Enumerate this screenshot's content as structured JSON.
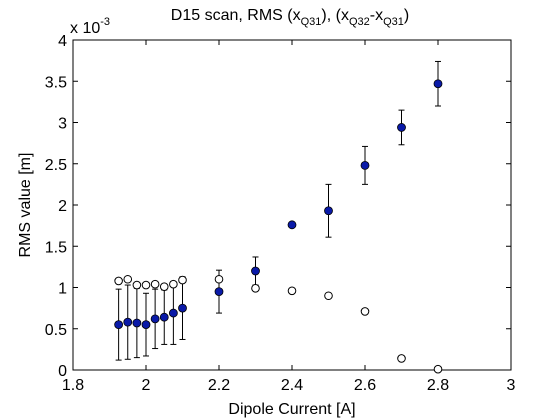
{
  "chart_data": {
    "type": "scatter",
    "title": {
      "prefix": "D15 scan, RMS (x",
      "sub1": "Q31",
      "mid": "), (x",
      "sub2": "Q32",
      "mid2": "-x",
      "sub3": "Q31",
      "suffix": ")"
    },
    "xlabel": "Dipole Current [A]",
    "ylabel": "RMS value [m]",
    "y_exponent": {
      "base": "x 10",
      "power": "-3"
    },
    "xlim": [
      1.8,
      3.0
    ],
    "ylim": [
      0,
      4
    ],
    "xticks": [
      1.8,
      2.0,
      2.2,
      2.4,
      2.6,
      2.8,
      3.0
    ],
    "xtick_labels": [
      "1.8",
      "2",
      "2.2",
      "2.4",
      "2.6",
      "2.8",
      "3"
    ],
    "yticks": [
      0,
      0.5,
      1,
      1.5,
      2,
      2.5,
      3,
      3.5,
      4
    ],
    "ytick_labels": [
      "0",
      "0.5",
      "1",
      "1.5",
      "2",
      "2.5",
      "3",
      "3.5",
      "4"
    ],
    "grid": false,
    "series": [
      {
        "marker": "filled-circle",
        "color": "#0a1aa8",
        "error_bars": true,
        "points": [
          {
            "x": 1.925,
            "y": 0.55,
            "err": 0.43
          },
          {
            "x": 1.95,
            "y": 0.58,
            "err": 0.45
          },
          {
            "x": 1.975,
            "y": 0.57,
            "err": 0.42
          },
          {
            "x": 2.0,
            "y": 0.55,
            "err": 0.38
          },
          {
            "x": 2.025,
            "y": 0.62,
            "err": 0.36
          },
          {
            "x": 2.05,
            "y": 0.64,
            "err": 0.33
          },
          {
            "x": 2.075,
            "y": 0.69,
            "err": 0.38
          },
          {
            "x": 2.1,
            "y": 0.75,
            "err": 0.38
          },
          {
            "x": 2.2,
            "y": 0.95,
            "err": 0.26
          },
          {
            "x": 2.3,
            "y": 1.2,
            "err": 0.17
          },
          {
            "x": 2.4,
            "y": 1.76,
            "err": 0.03
          },
          {
            "x": 2.5,
            "y": 1.93,
            "err": 0.32
          },
          {
            "x": 2.6,
            "y": 2.48,
            "err": 0.23
          },
          {
            "x": 2.7,
            "y": 2.94,
            "err": 0.21
          },
          {
            "x": 2.8,
            "y": 3.47,
            "err": 0.27
          }
        ]
      },
      {
        "marker": "open-circle",
        "color": "#000000",
        "error_bars": false,
        "points": [
          {
            "x": 1.925,
            "y": 1.08
          },
          {
            "x": 1.95,
            "y": 1.1
          },
          {
            "x": 1.975,
            "y": 1.03
          },
          {
            "x": 2.0,
            "y": 1.03
          },
          {
            "x": 2.025,
            "y": 1.04
          },
          {
            "x": 2.05,
            "y": 1.01
          },
          {
            "x": 2.075,
            "y": 1.04
          },
          {
            "x": 2.1,
            "y": 1.09
          },
          {
            "x": 2.2,
            "y": 1.1
          },
          {
            "x": 2.3,
            "y": 0.99
          },
          {
            "x": 2.4,
            "y": 0.96
          },
          {
            "x": 2.5,
            "y": 0.9
          },
          {
            "x": 2.6,
            "y": 0.71
          },
          {
            "x": 2.7,
            "y": 0.14
          },
          {
            "x": 2.8,
            "y": 0.01
          }
        ]
      }
    ]
  }
}
